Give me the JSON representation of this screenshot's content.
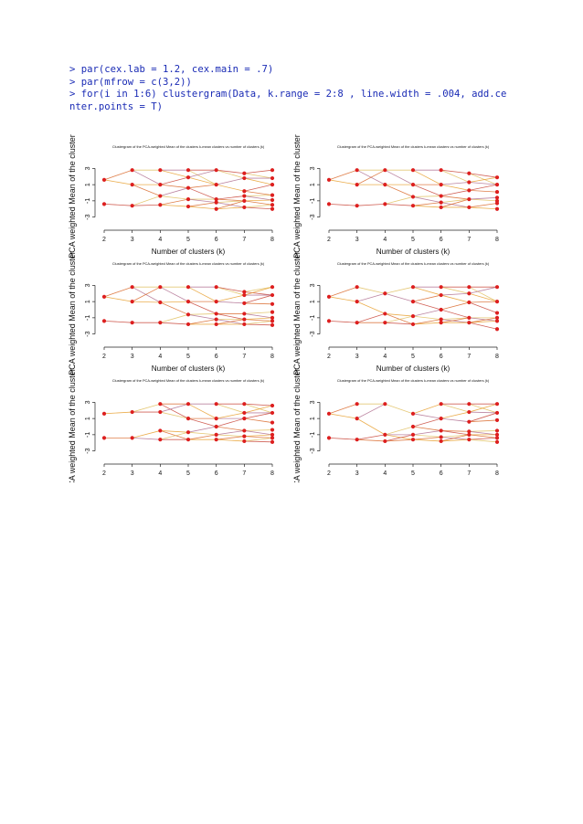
{
  "code_lines": [
    "> par(cex.lab = 1.2, cex.main = .7)",
    "> par(mfrow = c(3,2))",
    "> for(i in 1:6) clustergram(Data, k.range = 2:8 , line.width = .004, add.ce",
    "nter.points = T)"
  ],
  "chart_data": [
    {
      "type": "line",
      "title": "Clustergram of the PCA-weighted Mean of the clusters k-mean clusters vs number of clusters (k)",
      "xlabel": "Number of clusters (k)",
      "ylabel": "PCA weighted Mean of the cluster",
      "x": [
        2,
        3,
        4,
        5,
        6,
        7,
        8
      ],
      "x_ticks": [
        "2",
        "3",
        "4",
        "5",
        "6",
        "7",
        "8"
      ],
      "y_ticks": [
        "-3",
        "-1",
        "1",
        "3"
      ],
      "ylim": [
        -3.5,
        3.5
      ],
      "grid": false,
      "points": [
        [
          2,
          1.6
        ],
        [
          2,
          -1.4
        ],
        [
          3,
          2.8
        ],
        [
          3,
          1.0
        ],
        [
          3,
          -1.6
        ],
        [
          4,
          2.8
        ],
        [
          4,
          1.0
        ],
        [
          4,
          -0.4
        ],
        [
          4,
          -1.5
        ],
        [
          5,
          2.8
        ],
        [
          5,
          1.9
        ],
        [
          5,
          0.6
        ],
        [
          5,
          -0.8
        ],
        [
          5,
          -1.7
        ],
        [
          6,
          2.8
        ],
        [
          6,
          1.0
        ],
        [
          6,
          -0.8
        ],
        [
          6,
          -1.2
        ],
        [
          6,
          -2.0
        ],
        [
          7,
          2.4
        ],
        [
          7,
          1.8
        ],
        [
          7,
          0.2
        ],
        [
          7,
          -0.4
        ],
        [
          7,
          -1.0
        ],
        [
          7,
          -1.8
        ],
        [
          8,
          2.8
        ],
        [
          8,
          1.8
        ],
        [
          8,
          1.0
        ],
        [
          8,
          -0.3
        ],
        [
          8,
          -0.9
        ],
        [
          8,
          -1.5
        ],
        [
          8,
          -2.0
        ]
      ]
    },
    {
      "type": "line",
      "title": "Clustergram of the PCA-weighted Mean of the clusters k-mean clusters vs number of clusters (k)",
      "xlabel": "Number of clusters (k)",
      "ylabel": "PCA weighted Mean of the cluster",
      "x": [
        2,
        3,
        4,
        5,
        6,
        7,
        8
      ],
      "x_ticks": [
        "2",
        "3",
        "4",
        "5",
        "6",
        "7",
        "8"
      ],
      "y_ticks": [
        "-3",
        "-1",
        "1",
        "3"
      ],
      "ylim": [
        -3.5,
        3.5
      ],
      "grid": false,
      "points": [
        [
          2,
          1.6
        ],
        [
          2,
          -1.4
        ],
        [
          3,
          2.8
        ],
        [
          3,
          1.0
        ],
        [
          3,
          -1.6
        ],
        [
          4,
          2.8
        ],
        [
          4,
          1.0
        ],
        [
          4,
          -1.4
        ],
        [
          5,
          2.8
        ],
        [
          5,
          1.0
        ],
        [
          5,
          -0.5
        ],
        [
          5,
          -1.6
        ],
        [
          6,
          2.8
        ],
        [
          6,
          1.0
        ],
        [
          6,
          -0.4
        ],
        [
          6,
          -1.2
        ],
        [
          6,
          -1.8
        ],
        [
          7,
          2.4
        ],
        [
          7,
          1.3
        ],
        [
          7,
          0.3
        ],
        [
          7,
          -0.8
        ],
        [
          7,
          -1.8
        ],
        [
          8,
          1.9
        ],
        [
          8,
          1.0
        ],
        [
          8,
          0.1
        ],
        [
          8,
          -0.6
        ],
        [
          8,
          -1.0
        ],
        [
          8,
          -1.3
        ],
        [
          8,
          -2.0
        ]
      ]
    },
    {
      "type": "line",
      "title": "Clustergram of the PCA-weighted Mean of the clusters k-mean clusters vs number of clusters (k)",
      "xlabel": "Number of clusters (k)",
      "ylabel": "PCA weighted Mean of the cluster",
      "x": [
        2,
        3,
        4,
        5,
        6,
        7,
        8
      ],
      "x_ticks": [
        "2",
        "3",
        "4",
        "5",
        "6",
        "7",
        "8"
      ],
      "y_ticks": [
        "-3",
        "-1",
        "1",
        "3"
      ],
      "ylim": [
        -3.5,
        3.5
      ],
      "grid": false,
      "points": [
        [
          2,
          1.6
        ],
        [
          2,
          -1.4
        ],
        [
          3,
          2.8
        ],
        [
          3,
          1.0
        ],
        [
          3,
          -1.6
        ],
        [
          4,
          2.8
        ],
        [
          4,
          0.9
        ],
        [
          4,
          -1.6
        ],
        [
          5,
          2.8
        ],
        [
          5,
          1.0
        ],
        [
          5,
          -0.6
        ],
        [
          5,
          -1.8
        ],
        [
          6,
          2.8
        ],
        [
          6,
          1.0
        ],
        [
          6,
          -0.5
        ],
        [
          6,
          -1.2
        ],
        [
          6,
          -1.8
        ],
        [
          7,
          2.2
        ],
        [
          7,
          1.8
        ],
        [
          7,
          0.8
        ],
        [
          7,
          -0.5
        ],
        [
          7,
          -1.2
        ],
        [
          7,
          -1.8
        ],
        [
          8,
          2.8
        ],
        [
          8,
          1.8
        ],
        [
          8,
          0.7
        ],
        [
          8,
          -0.3
        ],
        [
          8,
          -1.0
        ],
        [
          8,
          -1.4
        ],
        [
          8,
          -1.9
        ]
      ]
    },
    {
      "type": "line",
      "title": "Clustergram of the PCA-weighted Mean of the clusters k-mean clusters vs number of clusters (k)",
      "xlabel": "Number of clusters (k)",
      "ylabel": "PCA weighted Mean of the cluster",
      "x": [
        2,
        3,
        4,
        5,
        6,
        7,
        8
      ],
      "x_ticks": [
        "2",
        "3",
        "4",
        "5",
        "6",
        "7",
        "8"
      ],
      "y_ticks": [
        "-3",
        "-1",
        "1",
        "3"
      ],
      "ylim": [
        -3.5,
        3.5
      ],
      "grid": false,
      "points": [
        [
          2,
          1.6
        ],
        [
          2,
          -1.4
        ],
        [
          3,
          2.8
        ],
        [
          3,
          1.0
        ],
        [
          3,
          -1.6
        ],
        [
          4,
          2.0
        ],
        [
          4,
          -0.5
        ],
        [
          4,
          -1.6
        ],
        [
          5,
          2.8
        ],
        [
          5,
          1.0
        ],
        [
          5,
          -0.8
        ],
        [
          5,
          -1.8
        ],
        [
          6,
          2.8
        ],
        [
          6,
          1.8
        ],
        [
          6,
          0.0
        ],
        [
          6,
          -1.2
        ],
        [
          6,
          -1.6
        ],
        [
          7,
          2.8
        ],
        [
          7,
          2.0
        ],
        [
          7,
          0.9
        ],
        [
          7,
          -1.0
        ],
        [
          7,
          -1.6
        ],
        [
          8,
          2.8
        ],
        [
          8,
          1.0
        ],
        [
          8,
          -0.4
        ],
        [
          8,
          -1.0
        ],
        [
          8,
          -1.4
        ],
        [
          8,
          -2.4
        ]
      ]
    },
    {
      "type": "line",
      "title": "Clustergram of the PCA-weighted Mean of the clusters k-mean clusters vs number of clusters (k)",
      "xlabel": "Number of clusters (k)",
      "ylabel": "PCA weighted Mean of the cluster",
      "x": [
        2,
        3,
        4,
        5,
        6,
        7,
        8
      ],
      "x_ticks": [
        "2",
        "3",
        "4",
        "5",
        "6",
        "7",
        "8"
      ],
      "y_ticks": [
        "-3",
        "-1",
        "1",
        "3"
      ],
      "ylim": [
        -3.5,
        3.5
      ],
      "grid": false,
      "points": [
        [
          2,
          1.6
        ],
        [
          2,
          -1.4
        ],
        [
          3,
          1.8
        ],
        [
          3,
          -1.4
        ],
        [
          4,
          2.8
        ],
        [
          4,
          1.8
        ],
        [
          4,
          -0.5
        ],
        [
          4,
          -1.6
        ],
        [
          5,
          2.8
        ],
        [
          5,
          1.0
        ],
        [
          5,
          -0.7
        ],
        [
          5,
          -1.6
        ],
        [
          6,
          2.8
        ],
        [
          6,
          1.0
        ],
        [
          6,
          0.0
        ],
        [
          6,
          -1.0
        ],
        [
          6,
          -1.6
        ],
        [
          7,
          2.8
        ],
        [
          7,
          1.7
        ],
        [
          7,
          1.0
        ],
        [
          7,
          -0.5
        ],
        [
          7,
          -1.2
        ],
        [
          7,
          -1.8
        ],
        [
          8,
          2.6
        ],
        [
          8,
          1.7
        ],
        [
          8,
          0.5
        ],
        [
          8,
          -0.4
        ],
        [
          8,
          -1.0
        ],
        [
          8,
          -1.4
        ],
        [
          8,
          -1.9
        ]
      ]
    },
    {
      "type": "line",
      "title": "Clustergram of the PCA-weighted Mean of the clusters k-mean clusters vs number of clusters (k)",
      "xlabel": "Number of clusters (k)",
      "ylabel": "PCA weighted Mean of the cluster",
      "x": [
        2,
        3,
        4,
        5,
        6,
        7,
        8
      ],
      "x_ticks": [
        "2",
        "3",
        "4",
        "5",
        "6",
        "7",
        "8"
      ],
      "y_ticks": [
        "-3",
        "-1",
        "1",
        "3"
      ],
      "ylim": [
        -3.5,
        3.5
      ],
      "grid": false,
      "points": [
        [
          2,
          1.6
        ],
        [
          2,
          -1.4
        ],
        [
          3,
          2.8
        ],
        [
          3,
          1.0
        ],
        [
          3,
          -1.6
        ],
        [
          4,
          2.8
        ],
        [
          4,
          -1.0
        ],
        [
          4,
          -1.8
        ],
        [
          5,
          1.6
        ],
        [
          5,
          0.0
        ],
        [
          5,
          -1.0
        ],
        [
          5,
          -1.6
        ],
        [
          6,
          2.8
        ],
        [
          6,
          1.0
        ],
        [
          6,
          -0.5
        ],
        [
          6,
          -1.3
        ],
        [
          6,
          -1.8
        ],
        [
          7,
          2.8
        ],
        [
          7,
          1.8
        ],
        [
          7,
          0.6
        ],
        [
          7,
          -0.6
        ],
        [
          7,
          -1.0
        ],
        [
          7,
          -1.6
        ],
        [
          8,
          2.8
        ],
        [
          8,
          1.7
        ],
        [
          8,
          0.8
        ],
        [
          8,
          -0.5
        ],
        [
          8,
          -1.0
        ],
        [
          8,
          -1.4
        ],
        [
          8,
          -1.9
        ]
      ]
    }
  ],
  "colors": {
    "code": "#1a2bb5",
    "center_point": "#dd1f1f",
    "line_palette": [
      "#e8a030",
      "#d9682a",
      "#c9463a",
      "#e0c060",
      "#b07090"
    ]
  }
}
